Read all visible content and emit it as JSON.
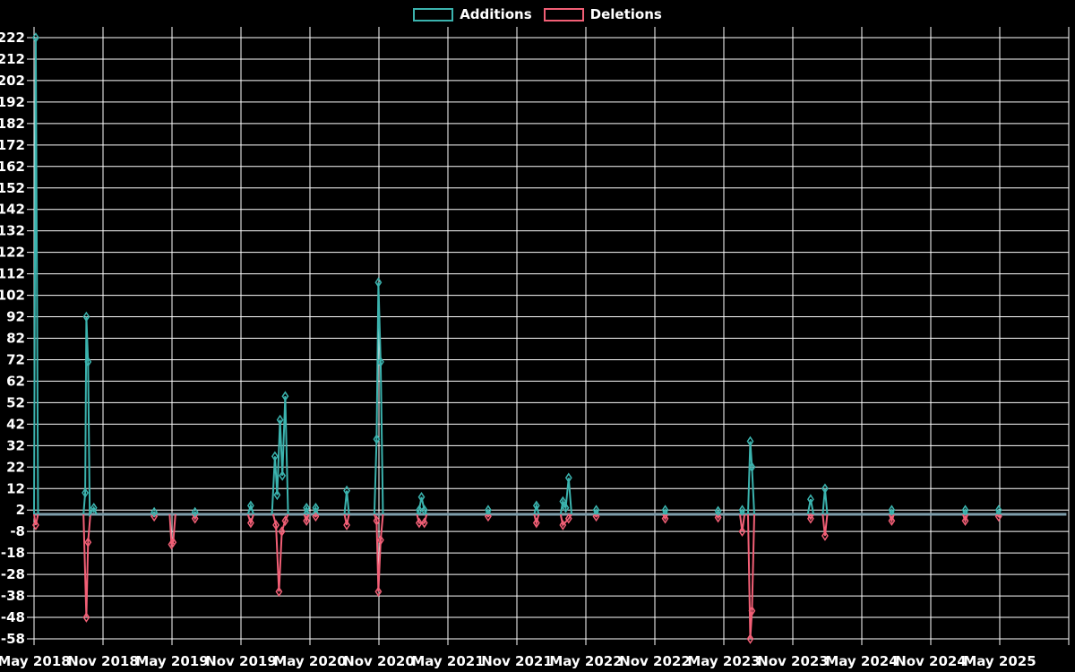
{
  "chart_data": {
    "type": "line",
    "title": "",
    "legend_position": "top",
    "grid": true,
    "background_color": "#000000",
    "gridline_color": "#ffffff",
    "text_color": "#ffffff",
    "baseline_color": "#7E9EAC",
    "x_axis": {
      "unit": "months since May 2018",
      "tick_step_months": 6,
      "tick_labels": [
        "May 2018",
        "Nov 2018",
        "May 2019",
        "Nov 2019",
        "May 2020",
        "Nov 2020",
        "May 2021",
        "Nov 2021",
        "May 2022",
        "Nov 2022",
        "May 2023",
        "Nov 2023",
        "May 2024",
        "Nov 2024",
        "May 2025"
      ],
      "extra_gridline_months": [
        90
      ],
      "range_months": [
        0,
        90
      ]
    },
    "y_axis": {
      "min": -58,
      "max": 222,
      "tick_step": 10,
      "ticks": [
        222,
        212,
        202,
        192,
        182,
        172,
        162,
        152,
        142,
        132,
        122,
        112,
        102,
        92,
        82,
        72,
        62,
        52,
        42,
        32,
        22,
        12,
        2,
        -8,
        -18,
        -28,
        -38,
        -48,
        -58
      ]
    },
    "series": [
      {
        "name": "Additions",
        "color": "#3BB3AE",
        "points": [
          [
            0,
            0
          ],
          [
            0.15,
            222
          ],
          [
            0.35,
            0
          ],
          [
            4.3,
            0
          ],
          [
            4.45,
            10
          ],
          [
            4.55,
            92
          ],
          [
            4.7,
            71
          ],
          [
            4.85,
            0
          ],
          [
            5.2,
            3
          ],
          [
            5.45,
            0
          ],
          [
            10.2,
            0
          ],
          [
            10.45,
            1
          ],
          [
            10.7,
            0
          ],
          [
            13.8,
            0
          ],
          [
            14.0,
            1
          ],
          [
            14.2,
            0
          ],
          [
            18.6,
            0
          ],
          [
            18.85,
            4
          ],
          [
            19.1,
            0
          ],
          [
            20.7,
            0
          ],
          [
            20.95,
            27
          ],
          [
            21.15,
            9
          ],
          [
            21.4,
            44
          ],
          [
            21.6,
            18
          ],
          [
            21.85,
            55
          ],
          [
            22.1,
            0
          ],
          [
            23.5,
            0
          ],
          [
            23.7,
            3
          ],
          [
            23.9,
            0
          ],
          [
            24.3,
            0
          ],
          [
            24.5,
            3
          ],
          [
            24.7,
            0
          ],
          [
            27.0,
            0
          ],
          [
            27.2,
            11
          ],
          [
            27.4,
            0
          ],
          [
            29.6,
            0
          ],
          [
            29.8,
            35
          ],
          [
            29.95,
            108
          ],
          [
            30.15,
            71
          ],
          [
            30.35,
            0
          ],
          [
            33.3,
            0
          ],
          [
            33.5,
            2
          ],
          [
            33.7,
            8
          ],
          [
            33.95,
            2
          ],
          [
            34.15,
            0
          ],
          [
            39.3,
            0
          ],
          [
            39.5,
            2
          ],
          [
            39.7,
            0
          ],
          [
            43.5,
            0
          ],
          [
            43.7,
            4
          ],
          [
            43.9,
            0
          ],
          [
            45.8,
            0
          ],
          [
            46.0,
            6
          ],
          [
            46.25,
            3
          ],
          [
            46.5,
            17
          ],
          [
            46.75,
            0
          ],
          [
            48.7,
            0
          ],
          [
            48.9,
            2
          ],
          [
            49.1,
            0
          ],
          [
            54.7,
            0
          ],
          [
            54.9,
            2
          ],
          [
            55.1,
            0
          ],
          [
            59.3,
            0
          ],
          [
            59.5,
            1.5
          ],
          [
            59.7,
            0
          ],
          [
            61.4,
            0
          ],
          [
            61.6,
            2
          ],
          [
            61.8,
            0
          ],
          [
            62.1,
            0
          ],
          [
            62.3,
            34
          ],
          [
            62.45,
            22
          ],
          [
            62.65,
            0
          ],
          [
            67.3,
            0
          ],
          [
            67.55,
            7
          ],
          [
            67.8,
            0
          ],
          [
            68.6,
            0
          ],
          [
            68.8,
            12
          ],
          [
            69.0,
            0
          ],
          [
            74.4,
            0
          ],
          [
            74.6,
            2
          ],
          [
            74.8,
            0
          ],
          [
            80.8,
            0
          ],
          [
            81.0,
            2
          ],
          [
            81.2,
            0
          ],
          [
            83.7,
            0
          ],
          [
            83.9,
            2
          ],
          [
            84.1,
            0
          ],
          [
            89.8,
            0
          ]
        ]
      },
      {
        "name": "Deletions",
        "color": "#F25F76",
        "points": [
          [
            0,
            0
          ],
          [
            0.15,
            -5
          ],
          [
            0.35,
            0
          ],
          [
            4.3,
            0
          ],
          [
            4.55,
            -48
          ],
          [
            4.7,
            -13
          ],
          [
            4.9,
            0
          ],
          [
            10.2,
            0
          ],
          [
            10.45,
            -1
          ],
          [
            10.7,
            0
          ],
          [
            11.8,
            0
          ],
          [
            11.95,
            -14
          ],
          [
            12.1,
            -13
          ],
          [
            12.3,
            0
          ],
          [
            13.8,
            0
          ],
          [
            14.0,
            -2
          ],
          [
            14.2,
            0
          ],
          [
            18.6,
            0
          ],
          [
            18.85,
            -4
          ],
          [
            19.1,
            0
          ],
          [
            20.8,
            0
          ],
          [
            21.05,
            -5
          ],
          [
            21.3,
            -36
          ],
          [
            21.55,
            -8
          ],
          [
            21.85,
            -3
          ],
          [
            22.1,
            0
          ],
          [
            23.5,
            0
          ],
          [
            23.7,
            -3
          ],
          [
            23.9,
            0
          ],
          [
            24.3,
            0
          ],
          [
            24.5,
            -1
          ],
          [
            24.7,
            0
          ],
          [
            27.0,
            0
          ],
          [
            27.2,
            -5
          ],
          [
            27.4,
            0
          ],
          [
            29.6,
            0
          ],
          [
            29.8,
            -3
          ],
          [
            29.95,
            -36
          ],
          [
            30.15,
            -12
          ],
          [
            30.35,
            0
          ],
          [
            33.3,
            0
          ],
          [
            33.5,
            -4
          ],
          [
            33.95,
            -4
          ],
          [
            34.15,
            0
          ],
          [
            39.3,
            0
          ],
          [
            39.5,
            -1
          ],
          [
            39.7,
            0
          ],
          [
            43.5,
            0
          ],
          [
            43.7,
            -4
          ],
          [
            43.9,
            0
          ],
          [
            45.8,
            0
          ],
          [
            46.0,
            -5
          ],
          [
            46.5,
            -2
          ],
          [
            46.75,
            0
          ],
          [
            48.7,
            0
          ],
          [
            48.9,
            -1
          ],
          [
            49.1,
            0
          ],
          [
            54.7,
            0
          ],
          [
            54.9,
            -2
          ],
          [
            55.1,
            0
          ],
          [
            59.3,
            0
          ],
          [
            59.5,
            -1.5
          ],
          [
            59.7,
            0
          ],
          [
            61.4,
            0
          ],
          [
            61.6,
            -8
          ],
          [
            61.8,
            0
          ],
          [
            62.1,
            0
          ],
          [
            62.3,
            -58
          ],
          [
            62.45,
            -45
          ],
          [
            62.65,
            0
          ],
          [
            67.3,
            0
          ],
          [
            67.55,
            -2
          ],
          [
            67.8,
            0
          ],
          [
            68.6,
            0
          ],
          [
            68.8,
            -10
          ],
          [
            69.0,
            0
          ],
          [
            74.4,
            0
          ],
          [
            74.6,
            -3
          ],
          [
            74.8,
            0
          ],
          [
            80.8,
            0
          ],
          [
            81.0,
            -3
          ],
          [
            81.2,
            0
          ],
          [
            83.7,
            0
          ],
          [
            83.9,
            -1
          ],
          [
            84.1,
            0
          ],
          [
            89.8,
            0
          ]
        ]
      }
    ]
  }
}
